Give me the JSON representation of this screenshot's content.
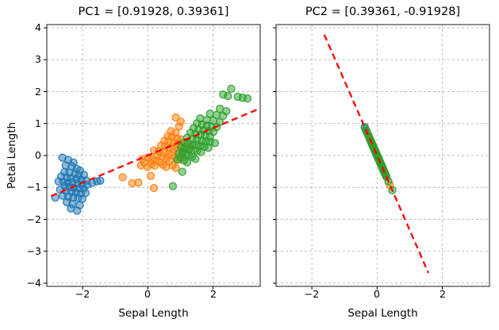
{
  "figure": {
    "kind": "matplotlib-pca-figure",
    "background": "#ffffff",
    "accent_line_color": "#ff0000",
    "series_colors": {
      "class0": "#1f77b4",
      "class1": "#ff7f0e",
      "class2": "#2ca02c"
    }
  },
  "chart_data": [
    {
      "type": "scatter",
      "title": "PC1 = [0.91928, 0.39361]",
      "xlabel": "Sepal Length",
      "ylabel": "Petal Length",
      "xlim": [
        -3.1,
        3.45
      ],
      "ylim": [
        -4.1,
        4.1
      ],
      "xticks": [
        -2,
        0,
        2
      ],
      "xticklabels": [
        "−2",
        "0",
        "2"
      ],
      "yticks": [
        4,
        3,
        2,
        1,
        0,
        -1,
        -2,
        -3,
        -4
      ],
      "yticklabels": [
        "4",
        "3",
        "2",
        "1",
        "0",
        "−1",
        "−2",
        "−3",
        "−4"
      ],
      "grid": true,
      "legend": "none",
      "pc_vector": [
        0.91928,
        0.39361
      ],
      "line": {
        "color": "#ff0000",
        "style": "dashed",
        "x1": -2.97,
        "y1": -1.272,
        "x2": 3.45,
        "y2": 1.477
      },
      "series": [
        {
          "name": "class0",
          "color": "#1f77b4",
          "points": [
            [
              -2.62,
              -0.07
            ],
            [
              -2.44,
              -0.14
            ],
            [
              -2.28,
              -0.22
            ],
            [
              -2.52,
              -0.31
            ],
            [
              -2.33,
              -0.34
            ],
            [
              -2.18,
              -0.42
            ],
            [
              -2.08,
              -0.47
            ],
            [
              -2.56,
              -0.52
            ],
            [
              -2.41,
              -0.54
            ],
            [
              -2.23,
              -0.57
            ],
            [
              -2.12,
              -0.62
            ],
            [
              -1.96,
              -0.61
            ],
            [
              -2.66,
              -0.66
            ],
            [
              -2.49,
              -0.69
            ],
            [
              -2.36,
              -0.71
            ],
            [
              -2.19,
              -0.74
            ],
            [
              -2.04,
              -0.76
            ],
            [
              -1.89,
              -0.79
            ],
            [
              -2.74,
              -0.81
            ],
            [
              -2.59,
              -0.83
            ],
            [
              -2.46,
              -0.86
            ],
            [
              -2.31,
              -0.84
            ],
            [
              -2.16,
              -0.89
            ],
            [
              -2.02,
              -0.91
            ],
            [
              -1.86,
              -0.92
            ],
            [
              -1.71,
              -0.86
            ],
            [
              -1.56,
              -0.81
            ],
            [
              -2.54,
              -0.96
            ],
            [
              -2.39,
              -0.99
            ],
            [
              -2.27,
              -1.01
            ],
            [
              -2.11,
              -1.03
            ],
            [
              -1.97,
              -1.04
            ],
            [
              -2.69,
              -1.07
            ],
            [
              -2.51,
              -1.11
            ],
            [
              -2.34,
              -1.13
            ],
            [
              -2.21,
              -1.16
            ],
            [
              -2.06,
              -1.19
            ],
            [
              -1.91,
              -1.17
            ],
            [
              -2.61,
              -1.26
            ],
            [
              -2.44,
              -1.29
            ],
            [
              -2.29,
              -1.31
            ],
            [
              -2.14,
              -1.33
            ],
            [
              -2.01,
              -1.36
            ],
            [
              -2.84,
              -1.32
            ],
            [
              -2.49,
              -1.46
            ],
            [
              -2.31,
              -1.52
            ],
            [
              -2.09,
              -1.56
            ],
            [
              -2.36,
              -1.66
            ],
            [
              -2.17,
              -1.73
            ],
            [
              -1.46,
              -0.79
            ]
          ]
        },
        {
          "name": "class1",
          "color": "#ff7f0e",
          "points": [
            [
              -0.77,
              -0.68
            ],
            [
              -0.48,
              -0.87
            ],
            [
              -0.29,
              -0.85
            ],
            [
              0.09,
              -0.64
            ],
            [
              0.19,
              -1.02
            ],
            [
              -0.21,
              -0.31
            ],
            [
              -0.11,
              -0.22
            ],
            [
              -0.01,
              -0.36
            ],
            [
              0.11,
              -0.26
            ],
            [
              0.21,
              -0.32
            ],
            [
              -0.16,
              -0.11
            ],
            [
              0.01,
              -0.06
            ],
            [
              0.12,
              -0.13
            ],
            [
              0.24,
              -0.16
            ],
            [
              0.36,
              -0.21
            ],
            [
              0.46,
              -0.29
            ],
            [
              0.56,
              -0.36
            ],
            [
              0.29,
              0.01
            ],
            [
              0.44,
              -0.03
            ],
            [
              0.56,
              -0.11
            ],
            [
              0.66,
              -0.19
            ],
            [
              0.76,
              -0.31
            ],
            [
              0.86,
              -0.39
            ],
            [
              0.19,
              0.16
            ],
            [
              0.34,
              0.13
            ],
            [
              0.49,
              0.09
            ],
            [
              0.63,
              0.04
            ],
            [
              0.73,
              0.01
            ],
            [
              0.84,
              -0.06
            ],
            [
              0.96,
              -0.13
            ],
            [
              0.41,
              0.31
            ],
            [
              0.54,
              0.29
            ],
            [
              0.69,
              0.24
            ],
            [
              0.79,
              0.21
            ],
            [
              0.93,
              0.16
            ],
            [
              1.06,
              0.09
            ],
            [
              0.51,
              0.46
            ],
            [
              0.64,
              0.43
            ],
            [
              0.79,
              0.39
            ],
            [
              0.91,
              0.36
            ],
            [
              1.03,
              0.31
            ],
            [
              1.16,
              0.27
            ],
            [
              0.61,
              0.61
            ],
            [
              0.74,
              0.59
            ],
            [
              0.89,
              0.54
            ],
            [
              1.01,
              0.51
            ],
            [
              0.71,
              0.76
            ],
            [
              0.86,
              0.71
            ],
            [
              0.96,
              0.91
            ],
            [
              0.86,
              1.19
            ],
            [
              1.01,
              1.06
            ],
            [
              1.29,
              0.26
            ]
          ]
        },
        {
          "name": "class2",
          "color": "#2ca02c",
          "points": [
            [
              0.77,
              -0.96
            ],
            [
              1.06,
              -0.51
            ],
            [
              0.91,
              -0.13
            ],
            [
              1.01,
              -0.06
            ],
            [
              1.11,
              -0.16
            ],
            [
              1.21,
              -0.21
            ],
            [
              0.96,
              0.06
            ],
            [
              1.07,
              0.11
            ],
            [
              1.16,
              0.04
            ],
            [
              1.26,
              0.01
            ],
            [
              1.36,
              -0.04
            ],
            [
              1.46,
              -0.11
            ],
            [
              1.02,
              0.26
            ],
            [
              1.13,
              0.21
            ],
            [
              1.26,
              0.19
            ],
            [
              1.39,
              0.17
            ],
            [
              1.51,
              0.14
            ],
            [
              1.63,
              0.11
            ],
            [
              1.11,
              0.41
            ],
            [
              1.23,
              0.37
            ],
            [
              1.36,
              0.34
            ],
            [
              1.49,
              0.33
            ],
            [
              1.61,
              0.29
            ],
            [
              1.73,
              0.27
            ],
            [
              1.86,
              0.24
            ],
            [
              1.21,
              0.56
            ],
            [
              1.36,
              0.51
            ],
            [
              1.51,
              0.49
            ],
            [
              1.66,
              0.47
            ],
            [
              1.79,
              0.44
            ],
            [
              1.91,
              0.43
            ],
            [
              2.06,
              0.39
            ],
            [
              1.31,
              0.71
            ],
            [
              1.46,
              0.67
            ],
            [
              1.61,
              0.64
            ],
            [
              1.76,
              0.63
            ],
            [
              1.91,
              0.59
            ],
            [
              1.41,
              0.86
            ],
            [
              1.56,
              0.81
            ],
            [
              1.71,
              0.79
            ],
            [
              1.86,
              0.77
            ],
            [
              2.01,
              0.74
            ],
            [
              1.51,
              1.01
            ],
            [
              1.66,
              0.97
            ],
            [
              1.81,
              0.94
            ],
            [
              1.96,
              0.91
            ],
            [
              2.11,
              0.89
            ],
            [
              1.61,
              1.16
            ],
            [
              1.81,
              1.11
            ],
            [
              2.01,
              1.09
            ],
            [
              2.21,
              1.04
            ],
            [
              1.91,
              1.31
            ],
            [
              2.11,
              1.27
            ],
            [
              2.31,
              1.24
            ],
            [
              2.21,
              1.46
            ],
            [
              2.41,
              1.39
            ],
            [
              2.31,
              1.91
            ],
            [
              2.46,
              1.86
            ],
            [
              2.56,
              2.09
            ],
            [
              2.76,
              1.84
            ],
            [
              2.91,
              1.81
            ],
            [
              3.06,
              1.79
            ]
          ]
        }
      ]
    },
    {
      "type": "scatter",
      "title": "PC2 = [0.39361, -0.91928]",
      "xlabel": "Sepal Length",
      "ylabel": "",
      "xlim": [
        -3.1,
        3.45
      ],
      "ylim": [
        -4.1,
        4.1
      ],
      "xticks": [
        -2,
        0,
        2
      ],
      "xticklabels": [
        "−2",
        "0",
        "2"
      ],
      "yticks": [
        4,
        3,
        2,
        1,
        0,
        -1,
        -2,
        -3,
        -4
      ],
      "yticklabels": [],
      "grid": true,
      "legend": "none",
      "pc_vector": [
        0.39361,
        -0.91928
      ],
      "projection": {
        "source_chart": 0,
        "vector": [
          0.39361,
          -0.91928
        ],
        "note": "points are chart 0 data projected onto PC2 direction"
      },
      "line": {
        "color": "#ff0000",
        "style": "dashed",
        "x1": -1.62,
        "y1": 3.785,
        "x2": 1.576,
        "y2": -3.68
      }
    }
  ]
}
